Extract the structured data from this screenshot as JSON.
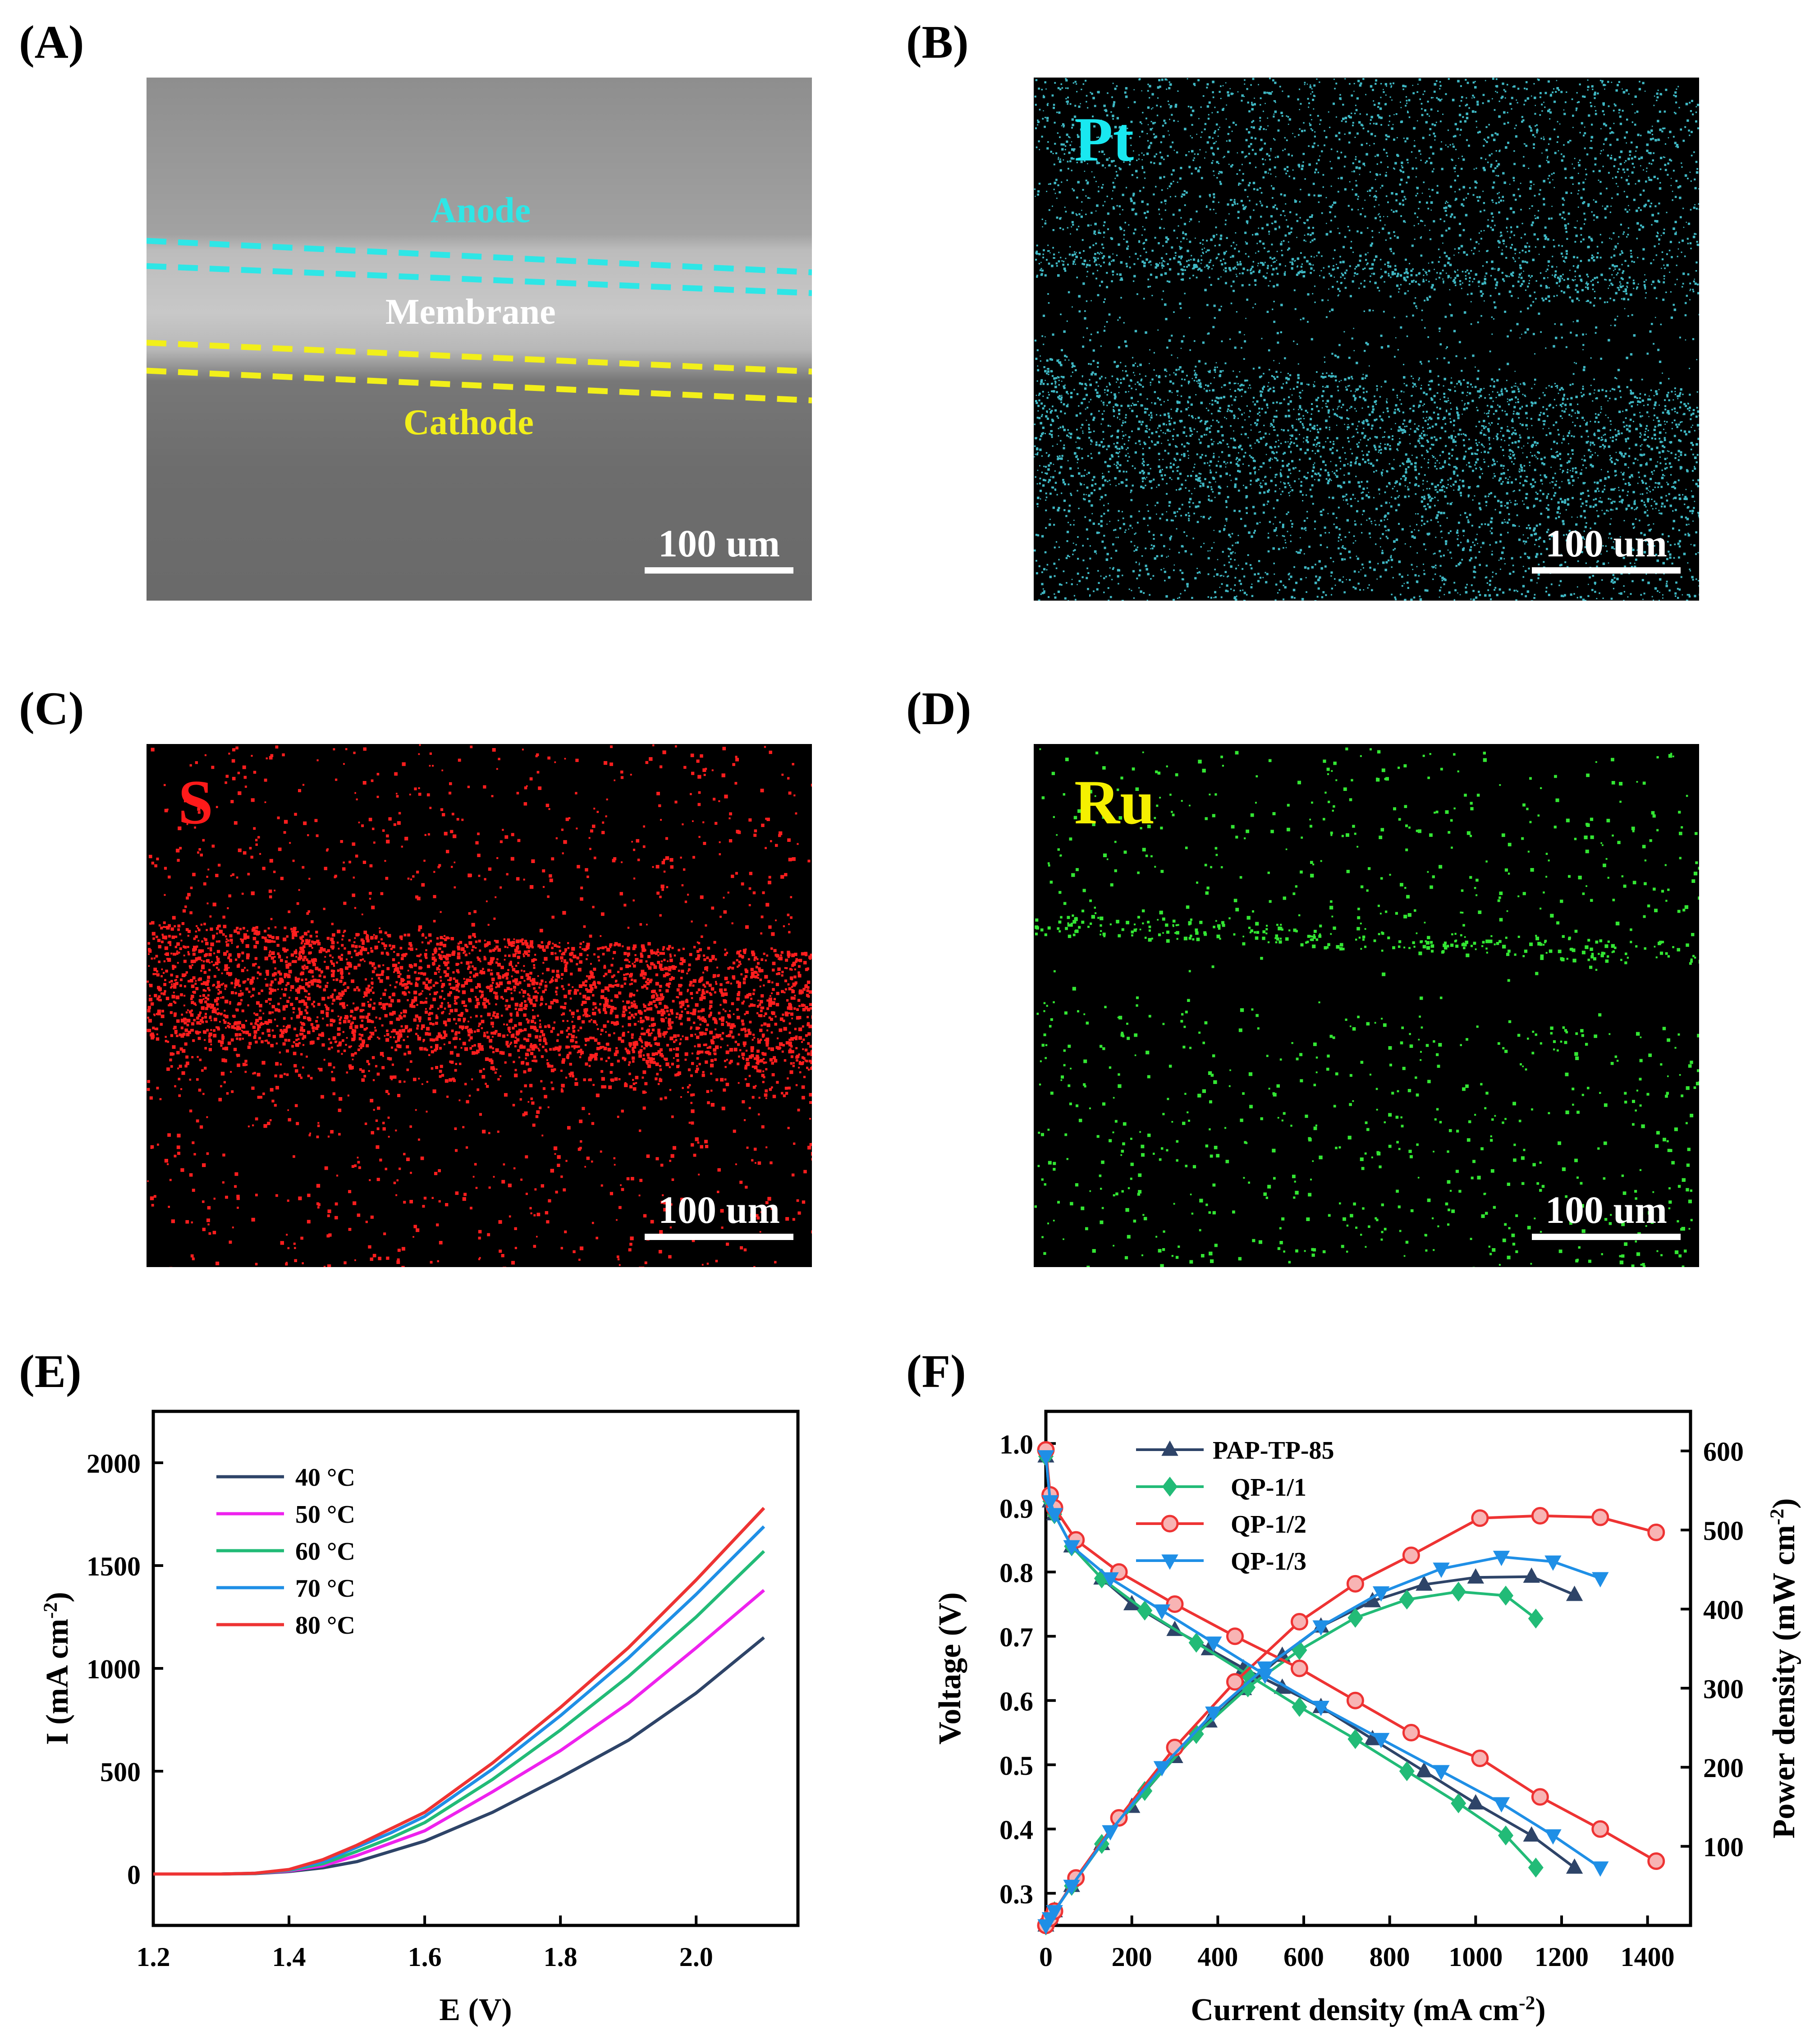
{
  "figure": {
    "panels": {
      "A": {
        "label": "(A)",
        "layers": {
          "anode": "Anode",
          "membrane": "Membrane",
          "cathode": "Cathode"
        },
        "scale_bar": "100 um",
        "colors": {
          "anode_line": "#2ee6e6",
          "cathode_line": "#f2ef1a",
          "anode_text": "#2ee6e6",
          "membrane_text": "#ffffff",
          "cathode_text": "#f2ef1a"
        }
      },
      "B": {
        "label": "(B)",
        "element": "Pt",
        "element_color": "#19e8f0",
        "dot_color": "#3fb8c4",
        "scale_bar": "100 um"
      },
      "C": {
        "label": "(C)",
        "element": "S",
        "element_color": "#ff1a1a",
        "dot_color": "#ff1e1e",
        "scale_bar": "100 um"
      },
      "D": {
        "label": "(D)",
        "element": "Ru",
        "element_color": "#f5f000",
        "dot_color": "#33e633",
        "scale_bar": "100 um"
      },
      "E": {
        "label": "(E)"
      },
      "F": {
        "label": "(F)"
      }
    }
  },
  "chart_data": [
    {
      "panel": "E",
      "type": "line",
      "xlabel": "E (V)",
      "ylabel": "I (mA cm-2)",
      "xlim": [
        1.2,
        2.15
      ],
      "ylim": [
        -250,
        2250
      ],
      "xticks": [
        1.2,
        1.4,
        1.6,
        1.8,
        2.0
      ],
      "xtick_labels": [
        "1.2",
        "1.4",
        "1.6",
        "1.8",
        "2.0"
      ],
      "yticks": [
        0,
        500,
        1000,
        1500,
        2000
      ],
      "ytick_labels": [
        "0",
        "500",
        "1000",
        "1500",
        "2000"
      ],
      "legend_position": "top-left",
      "series": [
        {
          "name": "40 °C",
          "color": "#2e4468",
          "x": [
            1.2,
            1.3,
            1.35,
            1.4,
            1.45,
            1.5,
            1.55,
            1.6,
            1.7,
            1.8,
            1.9,
            2.0,
            2.1
          ],
          "y": [
            0,
            0,
            2,
            12,
            30,
            60,
            110,
            160,
            300,
            470,
            650,
            880,
            1150
          ]
        },
        {
          "name": "50 °C",
          "color": "#ee22ee",
          "x": [
            1.2,
            1.3,
            1.35,
            1.4,
            1.45,
            1.5,
            1.55,
            1.6,
            1.7,
            1.8,
            1.9,
            2.0,
            2.1
          ],
          "y": [
            0,
            0,
            3,
            15,
            40,
            90,
            150,
            210,
            400,
            600,
            830,
            1100,
            1380
          ]
        },
        {
          "name": "60 °C",
          "color": "#22bb77",
          "x": [
            1.2,
            1.3,
            1.35,
            1.4,
            1.45,
            1.5,
            1.55,
            1.6,
            1.7,
            1.8,
            1.9,
            2.0,
            2.1
          ],
          "y": [
            0,
            0,
            3,
            18,
            50,
            110,
            175,
            250,
            460,
            700,
            960,
            1250,
            1570
          ]
        },
        {
          "name": "70 °C",
          "color": "#1f8fe6",
          "x": [
            1.2,
            1.3,
            1.35,
            1.4,
            1.45,
            1.5,
            1.55,
            1.6,
            1.7,
            1.8,
            1.9,
            2.0,
            2.1
          ],
          "y": [
            0,
            0,
            4,
            20,
            60,
            130,
            200,
            280,
            510,
            770,
            1050,
            1360,
            1690
          ]
        },
        {
          "name": "80 °C",
          "color": "#ee3333",
          "x": [
            1.2,
            1.3,
            1.35,
            1.4,
            1.45,
            1.5,
            1.55,
            1.6,
            1.7,
            1.8,
            1.9,
            2.0,
            2.1
          ],
          "y": [
            0,
            0,
            4,
            22,
            70,
            140,
            220,
            300,
            540,
            810,
            1100,
            1430,
            1780
          ]
        }
      ]
    },
    {
      "panel": "F",
      "type": "line",
      "xlabel": "Current density (mA cm-2)",
      "ylabel": "Voltage (V)",
      "y2label": "Power density (mW cm-2)",
      "xlim": [
        0,
        1500
      ],
      "ylim": [
        0.25,
        1.05
      ],
      "y2lim": [
        0,
        650
      ],
      "xticks": [
        0,
        200,
        400,
        600,
        800,
        1000,
        1200,
        1400
      ],
      "xtick_labels": [
        "0",
        "200",
        "400",
        "600",
        "800",
        "1000",
        "1200",
        "1400"
      ],
      "yticks": [
        0.3,
        0.4,
        0.5,
        0.6,
        0.7,
        0.8,
        0.9,
        1.0
      ],
      "ytick_labels": [
        "0.3",
        "0.4",
        "0.5",
        "0.6",
        "0.7",
        "0.8",
        "0.9",
        "1.0"
      ],
      "y2ticks": [
        100,
        200,
        300,
        400,
        500,
        600
      ],
      "y2tick_labels": [
        "100",
        "200",
        "300",
        "400",
        "500",
        "600"
      ],
      "legend_position": "top-left",
      "series": [
        {
          "name": "PAP-TP-85",
          "color": "#2e4468",
          "marker": "triangle-up",
          "x": [
            0,
            10,
            20,
            60,
            130,
            200,
            300,
            380,
            460,
            550,
            640,
            760,
            880,
            1000,
            1130,
            1230
          ],
          "voltage": [
            0.98,
            0.91,
            0.89,
            0.84,
            0.79,
            0.75,
            0.71,
            0.68,
            0.65,
            0.62,
            0.59,
            0.54,
            0.49,
            0.44,
            0.39,
            0.34
          ],
          "power": [
            0,
            9,
            18,
            50,
            103,
            150,
            213,
            258,
            299,
            341,
            378,
            410,
            431,
            440,
            441,
            418
          ]
        },
        {
          "name": "QP-1/1",
          "color": "#22bb77",
          "marker": "diamond",
          "x": [
            0,
            10,
            20,
            60,
            130,
            230,
            350,
            470,
            590,
            720,
            840,
            960,
            1070,
            1140
          ],
          "voltage": [
            0.98,
            0.91,
            0.89,
            0.84,
            0.79,
            0.74,
            0.69,
            0.64,
            0.59,
            0.54,
            0.49,
            0.44,
            0.39,
            0.34
          ],
          "power": [
            0,
            9,
            18,
            50,
            103,
            170,
            242,
            301,
            348,
            389,
            412,
            422,
            417,
            388
          ]
        },
        {
          "name": "QP-1/2",
          "color": "#ee3333",
          "marker": "circle",
          "x": [
            0,
            10,
            20,
            70,
            170,
            300,
            440,
            590,
            720,
            850,
            1010,
            1150,
            1290,
            1420
          ],
          "voltage": [
            0.99,
            0.92,
            0.9,
            0.85,
            0.8,
            0.75,
            0.7,
            0.65,
            0.6,
            0.55,
            0.51,
            0.45,
            0.4,
            0.35
          ],
          "power": [
            0,
            9,
            18,
            60,
            136,
            225,
            308,
            384,
            432,
            468,
            515,
            518,
            516,
            497
          ]
        },
        {
          "name": "QP-1/3",
          "color": "#1f8fe6",
          "marker": "triangle-down",
          "x": [
            0,
            10,
            20,
            60,
            150,
            270,
            390,
            510,
            640,
            780,
            920,
            1060,
            1180,
            1290
          ],
          "voltage": [
            0.98,
            0.91,
            0.89,
            0.84,
            0.79,
            0.74,
            0.69,
            0.64,
            0.59,
            0.54,
            0.49,
            0.44,
            0.39,
            0.34
          ],
          "power": [
            0,
            9,
            18,
            50,
            119,
            200,
            269,
            326,
            378,
            421,
            451,
            466,
            460,
            439
          ]
        }
      ]
    }
  ]
}
